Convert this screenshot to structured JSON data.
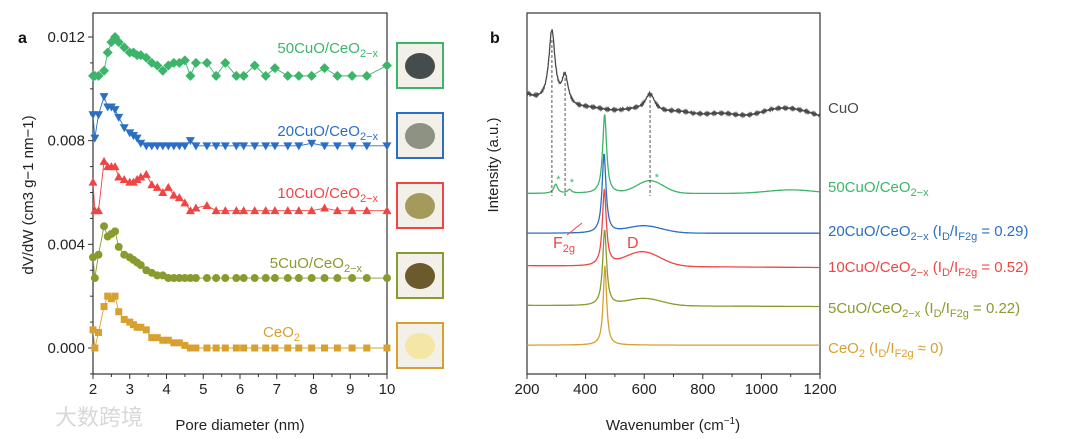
{
  "watermark": "大数跨境",
  "chart_data": [
    {
      "panel": "a",
      "type": "scatter",
      "xlabel": "Pore diameter (nm)",
      "ylabel": "dV/dW (cm3 g−1 nm−1)",
      "ylabel_parts": [
        "dV/dW (cm",
        "3",
        " g",
        "−1",
        " nm",
        "−1",
        ")"
      ],
      "xlim": [
        2,
        10
      ],
      "ylim": [
        -0.001,
        0.0129
      ],
      "xticks": [
        "2",
        "3",
        "4",
        "5",
        "6",
        "7",
        "8",
        "9",
        "10"
      ],
      "yticks": [
        "0.000",
        "0.004",
        "0.008",
        "0.012"
      ],
      "x": [
        2.0,
        2.05,
        2.15,
        2.3,
        2.4,
        2.5,
        2.6,
        2.7,
        2.85,
        3.0,
        3.1,
        3.2,
        3.3,
        3.45,
        3.6,
        3.75,
        3.9,
        4.05,
        4.2,
        4.35,
        4.5,
        4.65,
        4.8,
        5.1,
        5.35,
        5.6,
        5.9,
        6.1,
        6.4,
        6.7,
        6.95,
        7.3,
        7.6,
        7.95,
        8.3,
        8.65,
        9.05,
        9.45,
        10.0
      ],
      "series": [
        {
          "name": "50CuO/CeO2−x",
          "label": [
            "50CuO/CeO",
            "2−x"
          ],
          "color": "#3cb56a",
          "marker": "diamond",
          "values": [
            0.0105,
            0.0105,
            0.0105,
            0.0107,
            0.0114,
            0.0118,
            0.012,
            0.0118,
            0.0116,
            0.0114,
            0.0114,
            0.0113,
            0.0113,
            0.0112,
            0.011,
            0.0109,
            0.0107,
            0.0109,
            0.011,
            0.011,
            0.0111,
            0.0105,
            0.011,
            0.011,
            0.0105,
            0.011,
            0.0105,
            0.0105,
            0.0109,
            0.0105,
            0.0108,
            0.0105,
            0.0105,
            0.0105,
            0.0108,
            0.0105,
            0.0105,
            0.0105,
            0.0109
          ]
        },
        {
          "name": "20CuO/CeO2−x",
          "label": [
            "20CuO/CeO",
            "2−x"
          ],
          "color": "#2a6fc4",
          "marker": "triangle-down",
          "values": [
            0.009,
            0.0081,
            0.009,
            0.0097,
            0.0093,
            0.0093,
            0.0092,
            0.0089,
            0.0085,
            0.0083,
            0.0082,
            0.0081,
            0.0079,
            0.0078,
            0.0078,
            0.0078,
            0.0078,
            0.0078,
            0.0078,
            0.0078,
            0.0078,
            0.008,
            0.0078,
            0.0078,
            0.0078,
            0.0078,
            0.0078,
            0.0078,
            0.0078,
            0.0078,
            0.0078,
            0.0078,
            0.0078,
            0.0079,
            0.0078,
            0.0078,
            0.0078,
            0.0078,
            0.0078
          ]
        },
        {
          "name": "10CuO/CeO2−x",
          "label": [
            "10CuO/CeO",
            "2−x"
          ],
          "color": "#f04545",
          "marker": "triangle-up",
          "values": [
            0.0064,
            0.0053,
            0.0053,
            0.0072,
            0.007,
            0.007,
            0.007,
            0.0066,
            0.0065,
            0.0064,
            0.0064,
            0.0065,
            0.0066,
            0.0067,
            0.0063,
            0.0062,
            0.006,
            0.0062,
            0.0059,
            0.0058,
            0.0056,
            0.0053,
            0.0054,
            0.0055,
            0.0053,
            0.0053,
            0.0053,
            0.0053,
            0.0053,
            0.0053,
            0.0053,
            0.0053,
            0.0053,
            0.0053,
            0.0054,
            0.0053,
            0.0053,
            0.0053,
            0.0053
          ]
        },
        {
          "name": "5CuO/CeO2−x",
          "label": [
            "5CuO/CeO",
            "2−x"
          ],
          "color": "#8a9a2e",
          "marker": "circle",
          "values": [
            0.0035,
            0.0027,
            0.0036,
            0.0047,
            0.0043,
            0.0044,
            0.0045,
            0.0039,
            0.0036,
            0.0035,
            0.0034,
            0.0033,
            0.0032,
            0.003,
            0.0029,
            0.0028,
            0.0028,
            0.0027,
            0.0027,
            0.0027,
            0.0027,
            0.0027,
            0.0027,
            0.0027,
            0.0027,
            0.0027,
            0.0027,
            0.0027,
            0.0027,
            0.0027,
            0.0027,
            0.0027,
            0.0027,
            0.0027,
            0.0027,
            0.0027,
            0.0027,
            0.0027,
            0.0027
          ]
        },
        {
          "name": "CeO2",
          "label": [
            "CeO",
            "2"
          ],
          "color": "#d9a030",
          "marker": "square",
          "values": [
            0.0007,
            0,
            0.0006,
            0.0016,
            0.002,
            0.0019,
            0.002,
            0.0014,
            0.0011,
            0.001,
            0.0009,
            0.0008,
            0.0008,
            0.0007,
            0.0004,
            0.0004,
            0.0003,
            0.0003,
            0.0002,
            0.0002,
            0.0001,
            0,
            0,
            0,
            0,
            0,
            0,
            0,
            0,
            0,
            0,
            0,
            0,
            0,
            0,
            0,
            0,
            0,
            0
          ]
        }
      ],
      "sample_photos": [
        {
          "series": "50CuO/CeO2−x",
          "border": "#3cb56a",
          "powder": "#454c4c"
        },
        {
          "series": "20CuO/CeO2−x",
          "border": "#2a6fc4",
          "powder": "#8e9282"
        },
        {
          "series": "10CuO/CeO2−x",
          "border": "#f04545",
          "powder": "#a39a5c"
        },
        {
          "series": "5CuO/CeO2−x",
          "border": "#8a9a2e",
          "powder": "#6d5a2c"
        },
        {
          "series": "CeO2",
          "border": "#d9a030",
          "powder": "#f4e7a6"
        }
      ]
    },
    {
      "panel": "b",
      "type": "line",
      "xlabel": "Wavenumber (cm−1)",
      "xlabel_parts": [
        "Wavenumber (cm",
        "−1",
        ")"
      ],
      "ylabel": "Intensity (a.u.)",
      "xlim": [
        200,
        1200
      ],
      "xticks": [
        "200",
        "400",
        "600",
        "800",
        "1000",
        "1200"
      ],
      "annotations": {
        "f2g": [
          "F",
          "2g"
        ],
        "d": "D",
        "asterisk": "*"
      },
      "reference_lines_cm": [
        285,
        330,
        620
      ],
      "series": [
        {
          "name": "CuO",
          "label": [
            [
              "CuO",
              0
            ]
          ],
          "color": "#4a4a4a",
          "offset": 7.45,
          "slope": -0.3,
          "noise": true,
          "peaks": [
            {
              "center": 285,
              "height": 2.0,
              "width": 13
            },
            {
              "center": 330,
              "height": 0.8,
              "width": 13
            },
            {
              "center": 620,
              "height": 0.5,
              "width": 20
            },
            {
              "center": 1090,
              "height": 0.25,
              "width": 60
            }
          ]
        },
        {
          "name": "50CuO/CeO2−x",
          "label": [
            [
              "50CuO/CeO",
              0
            ],
            [
              "2−x",
              1
            ]
          ],
          "color": "#3cb56a",
          "offset": 5.0,
          "slope": 0,
          "peaks": [
            {
              "center": 465,
              "height": 2.2,
              "width": 8
            },
            {
              "center": 298,
              "height": 0.25,
              "width": 8
            },
            {
              "center": 345,
              "height": 0.1,
              "width": 8
            },
            {
              "center": 620,
              "height": 0.35,
              "width": 45
            },
            {
              "center": 1100,
              "height": 0.1,
              "width": 80
            }
          ]
        },
        {
          "name": "20CuO/CeO2−x",
          "label": [
            [
              "20CuO/CeO",
              0
            ],
            [
              "2−x",
              1
            ],
            [
              " (I",
              0
            ],
            [
              "D",
              1
            ],
            [
              "/I",
              0
            ],
            [
              "F2g",
              1
            ],
            [
              " = 0.29)",
              0
            ]
          ],
          "color": "#2a6fc4",
          "offset": 3.9,
          "slope": 0,
          "peaks": [
            {
              "center": 463,
              "height": 2.2,
              "width": 8
            },
            {
              "center": 600,
              "height": 0.2,
              "width": 60
            }
          ]
        },
        {
          "name": "10CuO/CeO2−x",
          "label": [
            [
              "10CuO/CeO",
              0
            ],
            [
              "2−x",
              1
            ],
            [
              " (I",
              0
            ],
            [
              "D",
              1
            ],
            [
              "/I",
              0
            ],
            [
              "F2g",
              1
            ],
            [
              " = 0.52)",
              0
            ]
          ],
          "color": "#f04545",
          "offset": 3.0,
          "slope": -0.05,
          "peaks": [
            {
              "center": 464,
              "height": 2.1,
              "width": 8
            },
            {
              "center": 595,
              "height": 0.4,
              "width": 60
            }
          ]
        },
        {
          "name": "5CuO/CeO2−x",
          "label": [
            [
              "5CuO/CeO",
              0
            ],
            [
              "2−x",
              1
            ],
            [
              " (I",
              0
            ],
            [
              "D",
              1
            ],
            [
              "/I",
              0
            ],
            [
              "F2g",
              1
            ],
            [
              " = 0.22)",
              0
            ]
          ],
          "color": "#8a9a2e",
          "offset": 1.9,
          "slope": -0.03,
          "peaks": [
            {
              "center": 465,
              "height": 2.1,
              "width": 8
            },
            {
              "center": 600,
              "height": 0.2,
              "width": 60
            }
          ]
        },
        {
          "name": "CeO2",
          "label": [
            [
              "CeO",
              0
            ],
            [
              "2",
              1
            ],
            [
              " (I",
              0
            ],
            [
              "D",
              1
            ],
            [
              "/I",
              0
            ],
            [
              "F2g",
              1
            ],
            [
              " ≈ 0)",
              0
            ]
          ],
          "color": "#d9a030",
          "offset": 0.8,
          "slope": 0,
          "peaks": [
            {
              "center": 466,
              "height": 2.2,
              "width": 7
            }
          ]
        }
      ]
    }
  ]
}
